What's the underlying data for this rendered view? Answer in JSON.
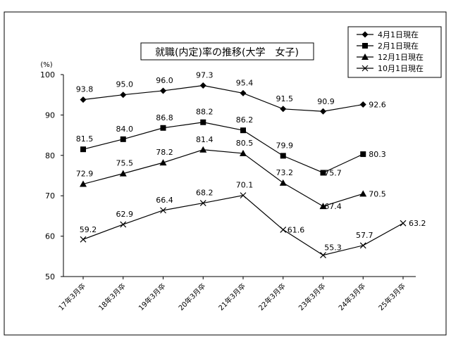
{
  "chart_data": {
    "type": "line",
    "title": "就職(内定)率の推移(大学　女子)",
    "ylabel": "(%)",
    "xlabel": "",
    "ylim": [
      50,
      100
    ],
    "yticks": [
      50,
      60,
      70,
      80,
      90,
      100
    ],
    "grid": false,
    "legend_position": "top-right",
    "categories": [
      "17年3月卒",
      "18年3月卒",
      "19年3月卒",
      "20年3月卒",
      "21年3月卒",
      "22年3月卒",
      "23年3月卒",
      "24年3月卒",
      "25年3月卒"
    ],
    "series": [
      {
        "name": "4月1日現在",
        "marker": "diamond",
        "values": [
          93.8,
          95.0,
          96.0,
          97.3,
          95.4,
          91.5,
          90.9,
          92.6,
          null
        ],
        "labels": [
          "93.8",
          "95.0",
          "96.0",
          "97.3",
          "95.4",
          "91.5",
          "90.9",
          "92.6",
          null
        ]
      },
      {
        "name": "2月1日現在",
        "marker": "square",
        "values": [
          81.5,
          84.0,
          86.8,
          88.2,
          86.2,
          79.9,
          75.7,
          80.3,
          null
        ],
        "labels": [
          "81.5",
          "84.0",
          "86.8",
          "88.2",
          "86.2",
          "79.9",
          "75.7",
          "80.3",
          null
        ]
      },
      {
        "name": "12月1日現在",
        "marker": "triangle",
        "values": [
          72.9,
          75.5,
          78.2,
          81.4,
          80.5,
          73.2,
          67.4,
          70.5,
          null
        ],
        "labels": [
          "72.9",
          "75.5",
          "78.2",
          "81.4",
          "80.5",
          "73.2",
          "67.4",
          "70.5",
          null
        ]
      },
      {
        "name": "10月1日現在",
        "marker": "x",
        "values": [
          59.2,
          62.9,
          66.4,
          68.2,
          70.1,
          61.6,
          55.3,
          57.7,
          63.2
        ],
        "labels": [
          "59.2",
          "62.9",
          "66.4",
          "68.2",
          "70.1",
          "61.6",
          "55.3",
          "57.7",
          "63.2"
        ]
      }
    ]
  }
}
